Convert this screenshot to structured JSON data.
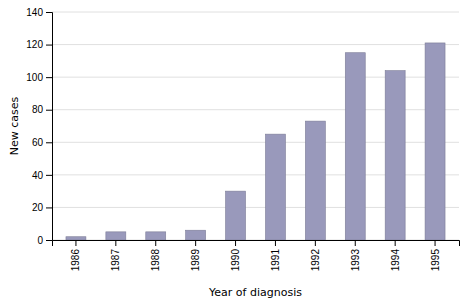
{
  "chart_data": {
    "type": "bar",
    "categories": [
      "1986",
      "1987",
      "1988",
      "1989",
      "1990",
      "1991",
      "1992",
      "1993",
      "1994",
      "1995"
    ],
    "values": [
      2,
      5,
      5,
      6,
      30,
      65,
      73,
      115,
      104,
      121
    ],
    "color": "#9999bb",
    "xlabel": "Year of diagnosis",
    "ylabel": "New cases",
    "ylim": [
      0,
      140
    ],
    "yticks": [
      0,
      20,
      40,
      60,
      80,
      100,
      120,
      140
    ],
    "grid": true
  }
}
